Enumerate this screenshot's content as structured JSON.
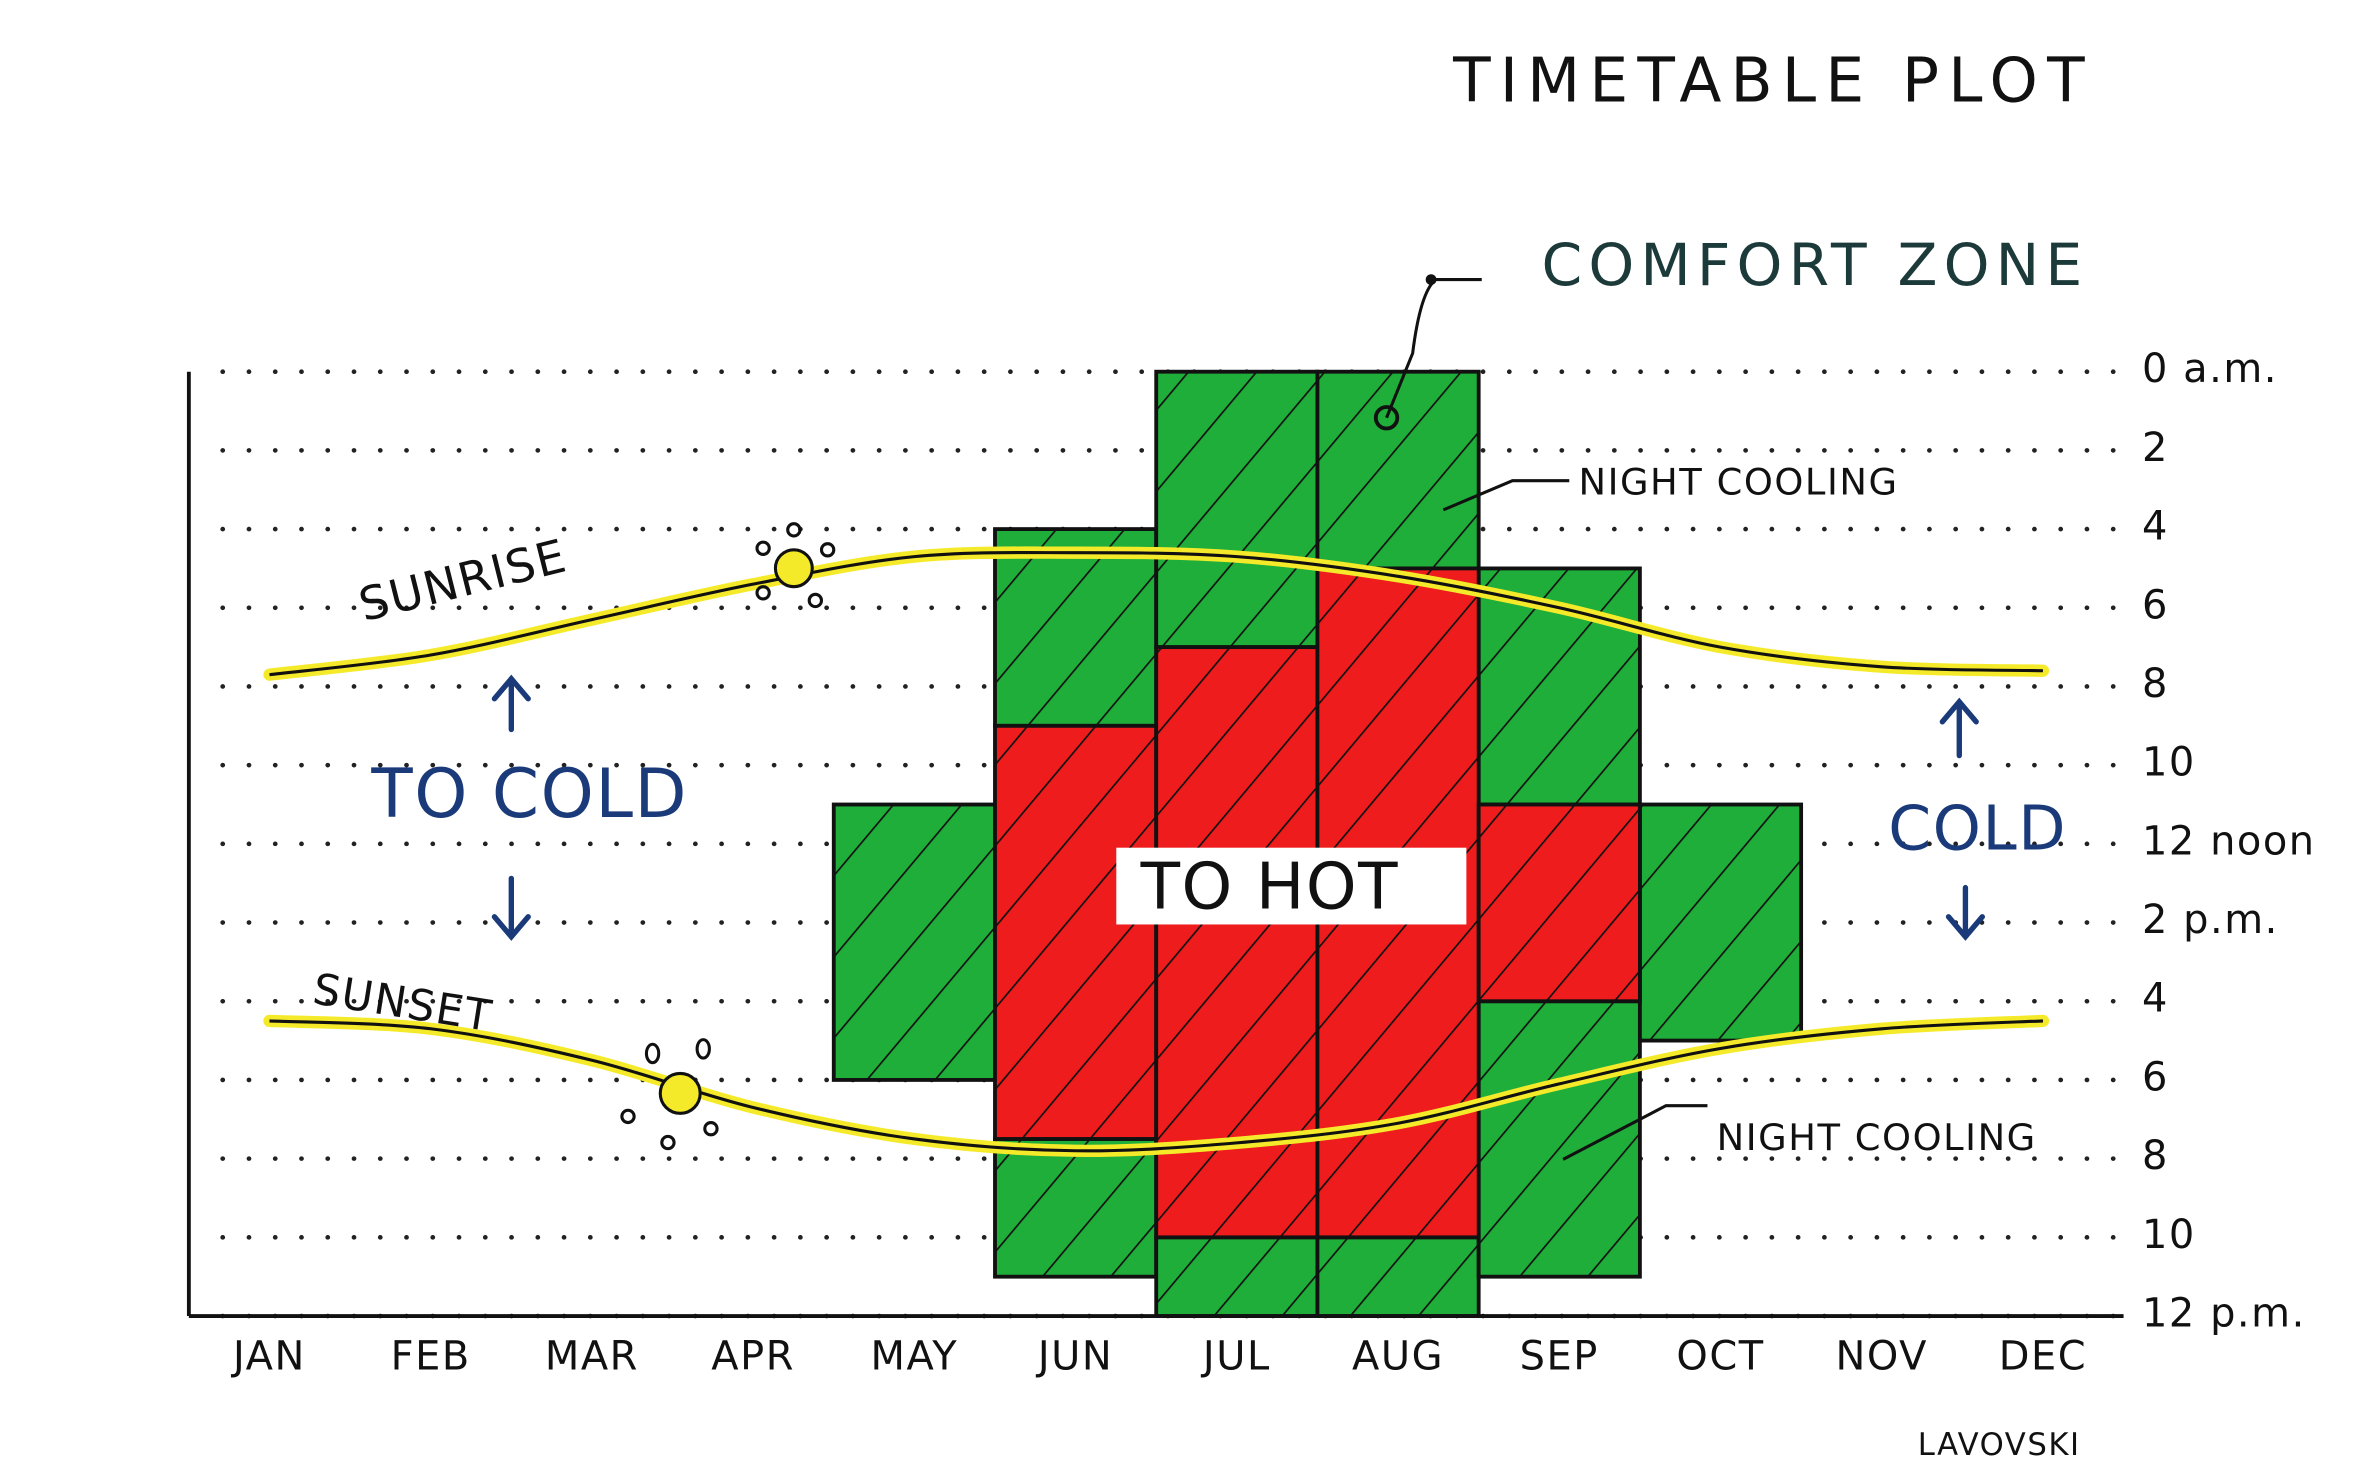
{
  "chart_data": {
    "type": "timetable",
    "title": "TIMETABLE PLOT",
    "categories": [
      "JAN",
      "FEB",
      "MAR",
      "APR",
      "MAY",
      "JUN",
      "JUL",
      "AUG",
      "SEP",
      "OCT",
      "NOV",
      "DEC"
    ],
    "ylim": [
      0,
      24
    ],
    "yticks": [
      {
        "value": 0,
        "label": "0 a.m."
      },
      2,
      4,
      6,
      8,
      10,
      {
        "value": 12,
        "label": "12 noon"
      },
      {
        "value": 14,
        "label": "2 p.m."
      },
      {
        "value": 16,
        "label": "4"
      },
      {
        "value": 18,
        "label": "6"
      },
      {
        "value": 20,
        "label": "8"
      },
      {
        "value": 22,
        "label": "10"
      },
      {
        "value": 24,
        "label": "12 p.m."
      }
    ],
    "grid": true,
    "series": [
      {
        "name": "COMFORT ZONE",
        "color": "#1fae3a",
        "ranges": [
          [],
          [],
          [],
          [],
          [
            [
              11,
              18
            ]
          ],
          [
            [
              4,
              9
            ],
            [
              19.5,
              23
            ]
          ],
          [
            [
              0,
              7
            ],
            [
              22,
              24
            ]
          ],
          [
            [
              0,
              5
            ],
            [
              22,
              24
            ]
          ],
          [
            [
              5,
              11
            ],
            [
              16,
              23
            ]
          ],
          [
            [
              11,
              17
            ]
          ],
          [],
          []
        ]
      },
      {
        "name": "TO HOT",
        "color": "#ee1c1c",
        "ranges": [
          [],
          [],
          [],
          [],
          [],
          [
            [
              9,
              19.5
            ]
          ],
          [
            [
              7,
              22
            ]
          ],
          [
            [
              5,
              22
            ]
          ],
          [
            [
              11,
              16
            ]
          ],
          [],
          [],
          []
        ]
      }
    ],
    "lines": [
      {
        "name": "SUNRISE",
        "color": "#f5ea2a",
        "values": [
          7.7,
          7.2,
          6.3,
          5.4,
          4.7,
          4.6,
          4.7,
          5.2,
          6.0,
          7.0,
          7.5,
          7.6
        ]
      },
      {
        "name": "SUNSET",
        "color": "#f5ea2a",
        "values": [
          16.5,
          16.7,
          17.5,
          18.7,
          19.5,
          19.8,
          19.6,
          19.1,
          18.1,
          17.2,
          16.7,
          16.5
        ]
      }
    ],
    "annotations": [
      "NIGHT COOLING",
      "NIGHT COOLING",
      "TO COLD",
      "COLD",
      "LAVOVSKI"
    ]
  }
}
